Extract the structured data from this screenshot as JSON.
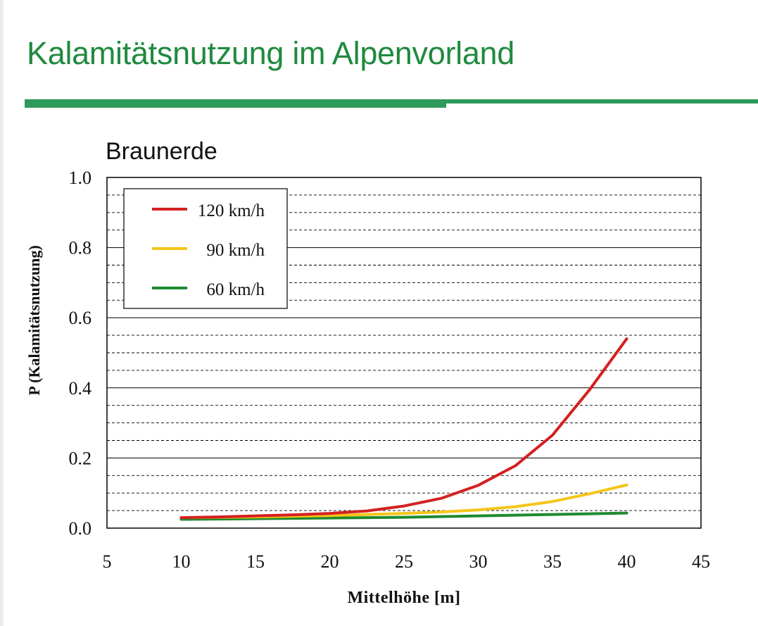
{
  "page": {
    "title": "Kalamitätsnutzung im Alpenvorland",
    "accent_color": "#2e9a5a",
    "title_color": "#1f8a3e"
  },
  "chart_data": {
    "type": "line",
    "title": "Braunerde",
    "xlabel": "Mittelhöhe [m]",
    "ylabel": "P (Kalamitätsnutzung)",
    "xlim": [
      5,
      45
    ],
    "ylim": [
      0.0,
      1.0
    ],
    "x_ticks": [
      5,
      10,
      15,
      20,
      25,
      30,
      35,
      40,
      45
    ],
    "y_ticks": [
      0.0,
      0.2,
      0.4,
      0.6,
      0.8,
      1.0
    ],
    "y_tick_labels": [
      "0.0",
      "0.2",
      "0.4",
      "0.6",
      "0.8",
      "1.0"
    ],
    "grid": "horizontal dashed every 0.05, solid every 0.2",
    "legend_position": "top-left",
    "x": [
      10,
      12.5,
      15,
      17.5,
      20,
      22.5,
      25,
      27.5,
      30,
      32.5,
      35,
      37.5,
      40
    ],
    "series": [
      {
        "name": "120 km/h",
        "color": "#d42020",
        "values": [
          0.03,
          0.032,
          0.035,
          0.038,
          0.042,
          0.049,
          0.063,
          0.085,
          0.122,
          0.178,
          0.265,
          0.395,
          0.54
        ]
      },
      {
        "name": "90 km/h",
        "color": "#f5c518",
        "values": [
          0.03,
          0.031,
          0.032,
          0.034,
          0.036,
          0.039,
          0.042,
          0.046,
          0.052,
          0.061,
          0.076,
          0.098,
          0.123
        ]
      },
      {
        "name": "60 km/h",
        "color": "#1e8a2e",
        "values": [
          0.025,
          0.026,
          0.027,
          0.028,
          0.029,
          0.03,
          0.031,
          0.033,
          0.035,
          0.037,
          0.039,
          0.041,
          0.043
        ]
      }
    ]
  }
}
